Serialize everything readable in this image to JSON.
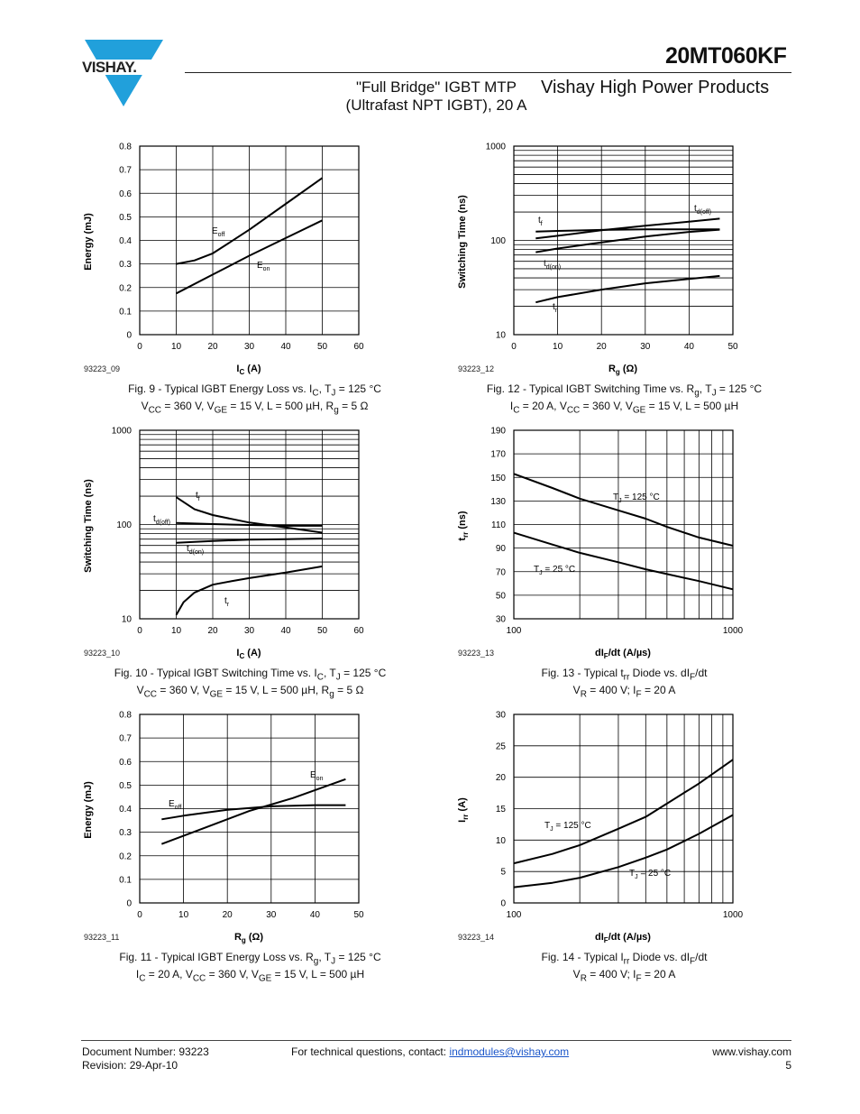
{
  "header": {
    "logo_text": "VISHAY.",
    "part_number": "20MT060KF",
    "subtitle_line1": "\"Full Bridge\" IGBT MTP",
    "subtitle_line2": "(Ultrafast NPT IGBT), 20 A",
    "division": "Vishay High Power Products"
  },
  "figures": [
    {
      "id": "93223_09",
      "caption_line1": "Fig. 9 - Typical IGBT Energy Loss vs. I_C, T_J = 125 °C",
      "caption_line2": "V_CC = 360 V, V_GE = 15 V, L = 500 µH, R_g = 5 Ω"
    },
    {
      "id": "93223_12",
      "caption_line1": "Fig. 12 - Typical IGBT Switching Time vs. R_g, T_J = 125 °C",
      "caption_line2": "I_C = 20 A, V_CC = 360 V, V_GE = 15 V, L = 500 µH"
    },
    {
      "id": "93223_10",
      "caption_line1": "Fig. 10 - Typical IGBT Switching Time vs. I_C, T_J = 125 °C",
      "caption_line2": "V_CC = 360 V, V_GE = 15 V, L = 500 µH, R_g = 5 Ω"
    },
    {
      "id": "93223_13",
      "caption_line1": "Fig. 13 - Typical t_rr Diode vs. dI_F/dt",
      "caption_line2": "V_R = 400 V; I_F = 20 A"
    },
    {
      "id": "93223_11",
      "caption_line1": "Fig. 11 - Typical IGBT Energy Loss vs. R_g, T_J = 125 °C",
      "caption_line2": "I_C = 20 A, V_CC = 360 V, V_GE = 15 V, L = 500 µH"
    },
    {
      "id": "93223_14",
      "caption_line1": "Fig. 14 - Typical I_rr Diode vs. dI_F/dt",
      "caption_line2": "V_R = 400 V; I_F = 20 A"
    }
  ],
  "chart_data": [
    {
      "type": "line",
      "xlabel": "I_C (A)",
      "ylabel": "Energy (mJ)",
      "xlim": [
        0,
        60
      ],
      "ylim": [
        0,
        0.8
      ],
      "xticks": [
        0,
        10,
        20,
        30,
        40,
        50,
        60
      ],
      "yticks": [
        0,
        0.1,
        0.2,
        0.3,
        0.4,
        0.5,
        0.6,
        0.7,
        0.8
      ],
      "yscale": "linear",
      "grid": true,
      "series": [
        {
          "name": "E_off",
          "x": [
            10,
            15,
            20,
            25,
            30,
            40,
            50
          ],
          "y": [
            0.3,
            0.315,
            0.345,
            0.395,
            0.445,
            0.555,
            0.665
          ]
        },
        {
          "name": "E_on",
          "x": [
            10,
            20,
            30,
            40,
            50
          ],
          "y": [
            0.175,
            0.255,
            0.335,
            0.41,
            0.485
          ]
        }
      ]
    },
    {
      "type": "line",
      "xlabel": "R_g (Ω)",
      "ylabel": "Switching Time (ns)",
      "xlim": [
        0,
        50
      ],
      "ylim": [
        10,
        1000
      ],
      "xticks": [
        0,
        10,
        20,
        30,
        40,
        50
      ],
      "yticks": [
        10,
        100,
        1000
      ],
      "yscale": "log",
      "grid": true,
      "series": [
        {
          "name": "t_d(off)",
          "x": [
            5,
            10,
            20,
            30,
            40,
            47
          ],
          "y": [
            105,
            112,
            128,
            143,
            158,
            170
          ]
        },
        {
          "name": "t_f",
          "x": [
            5,
            10,
            20,
            30,
            40,
            47
          ],
          "y": [
            124,
            126,
            129,
            131,
            131,
            131
          ]
        },
        {
          "name": "t_d(on)",
          "x": [
            5,
            10,
            20,
            30,
            40,
            47
          ],
          "y": [
            75,
            82,
            95,
            110,
            123,
            130
          ]
        },
        {
          "name": "t_r",
          "x": [
            5,
            10,
            20,
            30,
            40,
            47
          ],
          "y": [
            22,
            25,
            30,
            35,
            39,
            42
          ]
        }
      ]
    },
    {
      "type": "line",
      "xlabel": "I_C (A)",
      "ylabel": "Switching Time (ns)",
      "xlim": [
        0,
        60
      ],
      "ylim": [
        10,
        1000
      ],
      "xticks": [
        0,
        10,
        20,
        30,
        40,
        50,
        60
      ],
      "yticks": [
        10,
        100,
        1000
      ],
      "yscale": "log",
      "grid": true,
      "series": [
        {
          "name": "t_f",
          "x": [
            10,
            15,
            20,
            25,
            30,
            40,
            50
          ],
          "y": [
            195,
            145,
            126,
            115,
            105,
            93,
            82
          ]
        },
        {
          "name": "t_d(off)",
          "x": [
            10,
            20,
            30,
            40,
            50
          ],
          "y": [
            104,
            101,
            99,
            97,
            97
          ]
        },
        {
          "name": "t_d(on)",
          "x": [
            10,
            20,
            30,
            40,
            50
          ],
          "y": [
            64,
            67,
            69,
            70,
            71
          ]
        },
        {
          "name": "t_r",
          "x": [
            10,
            12,
            15,
            20,
            25,
            30,
            40,
            50
          ],
          "y": [
            11,
            15,
            19,
            23,
            25,
            27,
            31,
            36
          ]
        }
      ]
    },
    {
      "type": "line",
      "xlabel": "dI_F/dt (A/µs)",
      "ylabel": "t_rr (ns)",
      "xlim": [
        100,
        1000
      ],
      "ylim": [
        30,
        190
      ],
      "xticks": [
        100,
        1000
      ],
      "yticks": [
        30,
        50,
        70,
        90,
        110,
        130,
        150,
        170,
        190
      ],
      "xscale": "log",
      "grid": true,
      "series": [
        {
          "name": "T_J = 125 °C",
          "x": [
            100,
            150,
            200,
            300,
            400,
            500,
            700,
            1000
          ],
          "y": [
            153,
            141,
            132,
            122,
            115,
            108,
            99,
            92
          ]
        },
        {
          "name": "T_J = 25 °C",
          "x": [
            100,
            150,
            200,
            300,
            400,
            500,
            700,
            1000
          ],
          "y": [
            103,
            93,
            86,
            78,
            72,
            68,
            62,
            55
          ]
        }
      ]
    },
    {
      "type": "line",
      "xlabel": "R_g (Ω)",
      "ylabel": "Energy (mJ)",
      "xlim": [
        0,
        50
      ],
      "ylim": [
        0,
        0.8
      ],
      "xticks": [
        0,
        10,
        20,
        30,
        40,
        50
      ],
      "yticks": [
        0,
        0.1,
        0.2,
        0.3,
        0.4,
        0.5,
        0.6,
        0.7,
        0.8
      ],
      "yscale": "linear",
      "grid": true,
      "series": [
        {
          "name": "E_on",
          "x": [
            5,
            15,
            25,
            35,
            47
          ],
          "y": [
            0.25,
            0.32,
            0.39,
            0.445,
            0.525
          ]
        },
        {
          "name": "E_off",
          "x": [
            5,
            10,
            20,
            30,
            40,
            47
          ],
          "y": [
            0.355,
            0.37,
            0.395,
            0.41,
            0.415,
            0.415
          ]
        }
      ]
    },
    {
      "type": "line",
      "xlabel": "dI_F/dt (A/µs)",
      "ylabel": "I_rr (A)",
      "xlim": [
        100,
        1000
      ],
      "ylim": [
        0,
        30
      ],
      "xticks": [
        100,
        1000
      ],
      "yticks": [
        0,
        5,
        10,
        15,
        20,
        25,
        30
      ],
      "xscale": "log",
      "grid": true,
      "series": [
        {
          "name": "T_J = 125 °C",
          "x": [
            100,
            150,
            200,
            300,
            400,
            500,
            700,
            1000
          ],
          "y": [
            6.3,
            7.8,
            9.2,
            11.8,
            13.7,
            15.8,
            19,
            22.8
          ]
        },
        {
          "name": "T_J = 25 °C",
          "x": [
            100,
            150,
            200,
            300,
            400,
            500,
            700,
            1000
          ],
          "y": [
            2.5,
            3.2,
            4,
            5.7,
            7.2,
            8.5,
            11,
            14
          ]
        }
      ]
    }
  ],
  "footer": {
    "doc_number": "Document Number: 93223",
    "revision": "Revision: 29-Apr-10",
    "contact_text": "For technical questions, contact: ",
    "contact_email": "indmodules@vishay.com",
    "website": "www.vishay.com",
    "page": "5"
  }
}
